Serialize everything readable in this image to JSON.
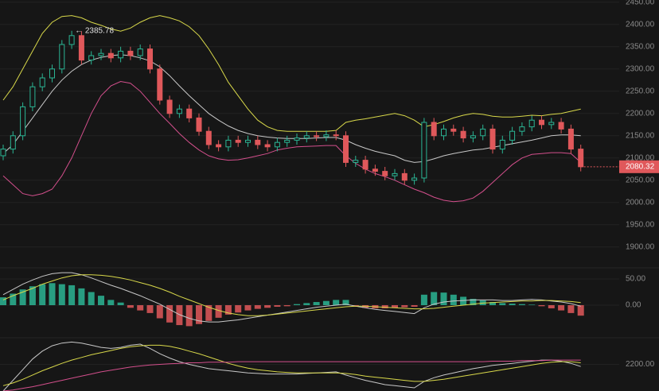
{
  "chart_data": [
    {
      "type": "candlestick",
      "open": [
        2105,
        2120,
        2150,
        2215,
        2260,
        2280,
        2300,
        2355,
        2375,
        2320,
        2330,
        2335,
        2325,
        2340,
        2330,
        2345,
        2300,
        2230,
        2200,
        2210,
        2190,
        2160,
        2130,
        2125,
        2140,
        2135,
        2140,
        2130,
        2125,
        2135,
        2140,
        2145,
        2150,
        2148,
        2152,
        2150,
        2090,
        2095,
        2075,
        2070,
        2060,
        2065,
        2050,
        2055,
        2180,
        2150,
        2165,
        2160,
        2145,
        2150,
        2165,
        2120,
        2140,
        2160,
        2170,
        2185,
        2175,
        2180,
        2165,
        2120
      ],
      "high": [
        2130,
        2160,
        2225,
        2270,
        2290,
        2310,
        2365,
        2385.78,
        2385,
        2340,
        2345,
        2345,
        2350,
        2350,
        2355,
        2355,
        2310,
        2240,
        2220,
        2220,
        2200,
        2170,
        2140,
        2150,
        2150,
        2150,
        2150,
        2140,
        2145,
        2150,
        2155,
        2160,
        2160,
        2162,
        2162,
        2160,
        2105,
        2105,
        2085,
        2080,
        2075,
        2075,
        2065,
        2190,
        2190,
        2175,
        2175,
        2170,
        2160,
        2175,
        2175,
        2150,
        2170,
        2180,
        2195,
        2195,
        2190,
        2190,
        2175,
        2130
      ],
      "low": [
        2095,
        2110,
        2140,
        2205,
        2250,
        2270,
        2290,
        2345,
        2310,
        2310,
        2320,
        2315,
        2315,
        2320,
        2320,
        2290,
        2220,
        2190,
        2190,
        2180,
        2150,
        2120,
        2115,
        2115,
        2125,
        2125,
        2120,
        2115,
        2115,
        2125,
        2130,
        2135,
        2138,
        2138,
        2140,
        2080,
        2080,
        2065,
        2060,
        2050,
        2050,
        2040,
        2040,
        2045,
        2140,
        2140,
        2150,
        2135,
        2135,
        2140,
        2110,
        2110,
        2130,
        2150,
        2160,
        2165,
        2165,
        2155,
        2110,
        2070
      ],
      "close": [
        2120,
        2150,
        2215,
        2260,
        2280,
        2300,
        2355,
        2375,
        2320,
        2330,
        2335,
        2325,
        2340,
        2330,
        2345,
        2300,
        2230,
        2200,
        2210,
        2190,
        2160,
        2130,
        2125,
        2140,
        2135,
        2140,
        2130,
        2125,
        2135,
        2140,
        2145,
        2150,
        2148,
        2152,
        2150,
        2090,
        2095,
        2075,
        2070,
        2060,
        2065,
        2050,
        2055,
        2180,
        2150,
        2165,
        2160,
        2145,
        2150,
        2165,
        2120,
        2140,
        2160,
        2170,
        2185,
        2175,
        2180,
        2165,
        2120,
        2080.32
      ],
      "up_color": "#2bb594",
      "down_color": "#e0585b",
      "series": [
        {
          "color": "#d8d84a",
          "values": [
            2230,
            2260,
            2300,
            2340,
            2380,
            2405,
            2418,
            2420,
            2415,
            2405,
            2398,
            2390,
            2385,
            2392,
            2405,
            2415,
            2420,
            2415,
            2408,
            2395,
            2375,
            2345,
            2310,
            2270,
            2240,
            2210,
            2185,
            2170,
            2162,
            2160,
            2160,
            2160,
            2160,
            2160,
            2162,
            2180,
            2185,
            2188,
            2192,
            2196,
            2200,
            2195,
            2185,
            2170,
            2175,
            2182,
            2190,
            2196,
            2200,
            2198,
            2194,
            2192,
            2192,
            2194,
            2196,
            2195,
            2198,
            2200,
            2205,
            2210
          ]
        },
        {
          "color": "#c8c8c8",
          "values": [
            2110,
            2130,
            2160,
            2190,
            2220,
            2250,
            2275,
            2295,
            2310,
            2320,
            2326,
            2330,
            2332,
            2330,
            2325,
            2318,
            2305,
            2285,
            2262,
            2240,
            2220,
            2200,
            2185,
            2172,
            2162,
            2155,
            2150,
            2147,
            2145,
            2144,
            2144,
            2144,
            2145,
            2146,
            2146,
            2140,
            2130,
            2122,
            2115,
            2110,
            2105,
            2095,
            2090,
            2092,
            2098,
            2105,
            2110,
            2114,
            2118,
            2120,
            2124,
            2128,
            2132,
            2136,
            2140,
            2145,
            2150,
            2152,
            2152,
            2150
          ]
        },
        {
          "color": "#d34f8c",
          "values": [
            2060,
            2040,
            2020,
            2015,
            2020,
            2030,
            2060,
            2100,
            2150,
            2200,
            2240,
            2262,
            2272,
            2268,
            2250,
            2225,
            2200,
            2178,
            2155,
            2135,
            2118,
            2105,
            2098,
            2095,
            2096,
            2100,
            2105,
            2110,
            2118,
            2122,
            2125,
            2126,
            2127,
            2128,
            2128,
            2105,
            2088,
            2075,
            2065,
            2058,
            2050,
            2040,
            2030,
            2022,
            2012,
            2005,
            2002,
            2004,
            2010,
            2025,
            2045,
            2065,
            2085,
            2100,
            2108,
            2110,
            2112,
            2112,
            2110,
            2090
          ]
        }
      ],
      "annotation": "← 2385.78",
      "ylim": [
        1860,
        2455
      ],
      "yticks": [
        {
          "value": 2450,
          "label": "2450.00"
        },
        {
          "value": 2400,
          "label": "2400.00"
        },
        {
          "value": 2350,
          "label": "2350.00"
        },
        {
          "value": 2300,
          "label": "2300.00"
        },
        {
          "value": 2250,
          "label": "2250.00"
        },
        {
          "value": 2200,
          "label": "2200.00"
        },
        {
          "value": 2150,
          "label": "2150.00"
        },
        {
          "value": 2100,
          "label": "2100.00"
        },
        {
          "value": 2050,
          "label": "2050.00"
        },
        {
          "value": 2000,
          "label": "2000.00"
        },
        {
          "value": 1950,
          "label": "1950.00"
        },
        {
          "value": 1900,
          "label": "1900.00"
        }
      ],
      "grid": true
    },
    {
      "type": "bar",
      "values": [
        15,
        22,
        30,
        36,
        40,
        42,
        40,
        38,
        32,
        25,
        18,
        10,
        5,
        -5,
        -10,
        -15,
        -25,
        -33,
        -38,
        -40,
        -36,
        -30,
        -24,
        -18,
        -14,
        -10,
        -7,
        -5,
        -3,
        -2,
        2,
        4,
        6,
        8,
        10,
        10,
        -3,
        -5,
        -6,
        -6,
        -5,
        -4,
        -3,
        20,
        25,
        24,
        20,
        16,
        12,
        9,
        6,
        4,
        3,
        2,
        1,
        -2,
        -6,
        -10,
        -15,
        -20
      ],
      "up_color": "#2bb594",
      "down_color": "#e0585b",
      "series": [
        {
          "color": "#c8c8c8",
          "values": [
            20,
            30,
            40,
            48,
            55,
            60,
            62,
            62,
            58,
            52,
            45,
            38,
            32,
            25,
            18,
            10,
            2,
            -8,
            -18,
            -25,
            -30,
            -32,
            -32,
            -30,
            -28,
            -25,
            -22,
            -19,
            -16,
            -13,
            -10,
            -7,
            -4,
            -2,
            0,
            2,
            -2,
            -5,
            -8,
            -10,
            -12,
            -14,
            -16,
            -5,
            2,
            6,
            8,
            9,
            10,
            10,
            10,
            9,
            9,
            10,
            11,
            10,
            8,
            6,
            3,
            -2
          ]
        },
        {
          "color": "#d8d84a",
          "values": [
            10,
            18,
            25,
            32,
            40,
            46,
            52,
            56,
            58,
            58,
            57,
            55,
            52,
            48,
            43,
            38,
            32,
            25,
            17,
            10,
            3,
            -4,
            -10,
            -15,
            -18,
            -20,
            -20,
            -19,
            -17,
            -15,
            -13,
            -11,
            -9,
            -7,
            -5,
            -3,
            -2,
            -2,
            -3,
            -4,
            -5,
            -6,
            -7,
            -7,
            -6,
            -4,
            -2,
            0,
            2,
            4,
            5,
            6,
            7,
            8,
            8,
            9,
            9,
            8,
            7,
            5
          ]
        }
      ],
      "ylim": [
        -60,
        65
      ],
      "yticks": [
        {
          "value": 50,
          "label": "50.00"
        },
        {
          "value": 0,
          "label": "0.00"
        }
      ],
      "grid": true
    },
    {
      "type": "line",
      "series": [
        {
          "color": "#c8c8c8",
          "values": [
            2150,
            2170,
            2190,
            2210,
            2225,
            2235,
            2240,
            2242,
            2240,
            2236,
            2232,
            2230,
            2232,
            2236,
            2238,
            2230,
            2220,
            2212,
            2205,
            2200,
            2196,
            2192,
            2190,
            2188,
            2186,
            2184,
            2183,
            2182,
            2182,
            2182,
            2182,
            2183,
            2184,
            2185,
            2186,
            2180,
            2175,
            2170,
            2166,
            2162,
            2160,
            2158,
            2156,
            2168,
            2175,
            2180,
            2184,
            2188,
            2192,
            2195,
            2198,
            2200,
            2202,
            2204,
            2206,
            2208,
            2208,
            2206,
            2202,
            2196
          ]
        },
        {
          "color": "#d8d84a",
          "values": [
            2160,
            2165,
            2172,
            2180,
            2188,
            2195,
            2202,
            2208,
            2213,
            2218,
            2222,
            2226,
            2230,
            2233,
            2235,
            2236,
            2236,
            2234,
            2230,
            2225,
            2220,
            2214,
            2208,
            2202,
            2197,
            2193,
            2190,
            2188,
            2186,
            2185,
            2184,
            2184,
            2184,
            2184,
            2184,
            2183,
            2181,
            2178,
            2176,
            2174,
            2172,
            2170,
            2168,
            2168,
            2170,
            2172,
            2175,
            2178,
            2181,
            2184,
            2187,
            2190,
            2193,
            2196,
            2199,
            2202,
            2204,
            2205,
            2205,
            2203
          ]
        },
        {
          "color": "#d34f8c",
          "values": [
            2150,
            2152,
            2155,
            2158,
            2162,
            2166,
            2170,
            2174,
            2178,
            2182,
            2186,
            2189,
            2192,
            2195,
            2197,
            2199,
            2200,
            2201,
            2202,
            2203,
            2203,
            2204,
            2204,
            2204,
            2205,
            2205,
            2205,
            2205,
            2205,
            2205,
            2205,
            2205,
            2205,
            2205,
            2205,
            2205,
            2205,
            2205,
            2205,
            2205,
            2205,
            2205,
            2205,
            2205,
            2205,
            2205,
            2205,
            2205,
            2205,
            2205,
            2206,
            2206,
            2206,
            2207,
            2207,
            2207,
            2208,
            2208,
            2208,
            2208
          ]
        }
      ],
      "ylim": [
        2150,
        2250
      ],
      "yticks": [
        {
          "value": 2200,
          "label": "2200.00"
        }
      ],
      "grid": true
    }
  ]
}
